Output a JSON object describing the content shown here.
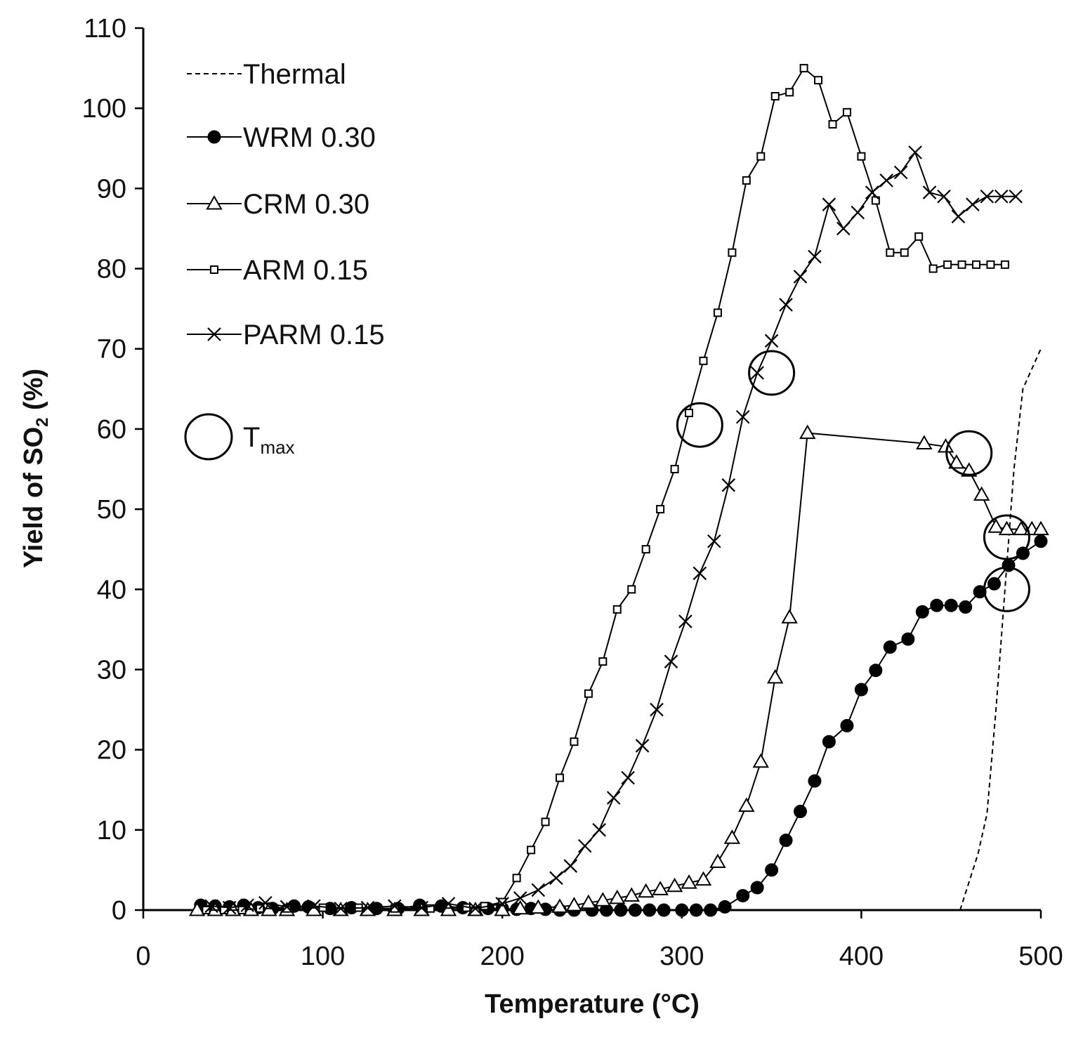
{
  "chart_data": {
    "type": "line",
    "title": "",
    "xlabel": "Temperature (°C)",
    "ylabel_main": "Yield of SO",
    "ylabel_sub": "2",
    "ylabel_tail": " (%)",
    "xlim": [
      0,
      500
    ],
    "ylim": [
      0,
      110
    ],
    "x_ticks": [
      0,
      100,
      200,
      300,
      400,
      500
    ],
    "y_ticks": [
      0,
      10,
      20,
      30,
      40,
      50,
      60,
      70,
      80,
      90,
      100,
      110
    ],
    "grid": false,
    "legend_position": "top-left",
    "series": [
      {
        "name": "Thermal",
        "style": "dashed",
        "marker": "none",
        "x": [
          455,
          465,
          470,
          475,
          480,
          485,
          490,
          500
        ],
        "y": [
          0,
          7,
          12,
          25,
          40,
          55,
          65,
          70
        ]
      },
      {
        "name": "WRM 0.30",
        "style": "solid",
        "marker": "filled-circle",
        "x": [
          32,
          40,
          48,
          56,
          64,
          72,
          84,
          92,
          104,
          116,
          130,
          142,
          154,
          166,
          178,
          192,
          200,
          208,
          216,
          224,
          232,
          240,
          250,
          258,
          266,
          274,
          282,
          290,
          300,
          308,
          316,
          324,
          334,
          342,
          350,
          358,
          366,
          374,
          382,
          392,
          400,
          408,
          416,
          426,
          434,
          442,
          450,
          458,
          466,
          474,
          482,
          490,
          500
        ],
        "y": [
          0.6,
          0.5,
          0.4,
          0.6,
          0.3,
          0.2,
          0.5,
          0.4,
          0.2,
          0.3,
          0.2,
          0.2,
          0.6,
          0.5,
          0.3,
          0.2,
          0.2,
          0.1,
          0.2,
          0.1,
          0,
          0,
          0,
          0,
          0,
          0,
          0,
          0,
          0,
          0,
          0,
          0.4,
          1.8,
          2.8,
          5,
          8.7,
          12.3,
          16.1,
          21,
          23,
          27.5,
          29.9,
          32.8,
          33.8,
          37.2,
          38,
          38,
          37.8,
          39.7,
          40.7,
          43,
          44.5,
          46
        ]
      },
      {
        "name": "CRM 0.30",
        "style": "solid",
        "marker": "open-triangle",
        "x": [
          30,
          40,
          50,
          60,
          70,
          80,
          95,
          110,
          125,
          140,
          155,
          170,
          185,
          200,
          210,
          220,
          232,
          240,
          248,
          256,
          264,
          272,
          280,
          288,
          296,
          304,
          312,
          320,
          328,
          336,
          344,
          352,
          360,
          370,
          435,
          447,
          453,
          460,
          467,
          475,
          481,
          489,
          495,
          500
        ],
        "y": [
          0,
          0,
          0,
          0,
          0,
          0,
          0,
          0,
          0,
          0,
          0,
          0,
          0,
          0,
          0.2,
          0.3,
          0.4,
          0.6,
          0.9,
          1.2,
          1.5,
          1.8,
          2.3,
          2.6,
          3,
          3.4,
          3.8,
          6,
          9,
          13,
          18.5,
          29,
          36.5,
          59.5,
          58.2,
          57.8,
          55.8,
          54.8,
          51.8,
          47.8,
          47.5,
          47.5,
          47.5,
          47.5
        ]
      },
      {
        "name": "ARM 0.15",
        "style": "solid",
        "marker": "open-square",
        "x": [
          35,
          45,
          55,
          65,
          80,
          100,
          120,
          140,
          160,
          180,
          190,
          200,
          208,
          216,
          224,
          232,
          240,
          248,
          256,
          264,
          272,
          280,
          288,
          296,
          304,
          312,
          320,
          328,
          336,
          344,
          352,
          360,
          368,
          376,
          384,
          392,
          400,
          408,
          416,
          424,
          432,
          440,
          448,
          456,
          464,
          472,
          480
        ],
        "y": [
          0,
          0,
          0,
          0.2,
          0.2,
          0.3,
          0.3,
          0.2,
          0.2,
          0.3,
          0.5,
          1,
          4,
          7.5,
          11,
          16.5,
          21,
          27,
          31,
          37.5,
          40,
          45,
          50,
          55,
          62,
          68.5,
          74.5,
          82,
          91,
          94,
          101.5,
          102,
          105,
          103.5,
          98,
          99.5,
          94,
          88.5,
          82,
          82,
          84,
          80,
          80.5,
          80.5,
          80.5,
          80.5,
          80.5
        ]
      },
      {
        "name": "PARM 0.15",
        "style": "solid",
        "marker": "x",
        "x": [
          38,
          48,
          58,
          68,
          80,
          95,
          110,
          125,
          140,
          155,
          170,
          185,
          200,
          210,
          220,
          230,
          238,
          246,
          254,
          262,
          270,
          278,
          286,
          294,
          302,
          310,
          318,
          326,
          334,
          342,
          350,
          358,
          366,
          374,
          382,
          390,
          398,
          406,
          414,
          422,
          430,
          438,
          446,
          454,
          462,
          470,
          478,
          486
        ],
        "y": [
          0.5,
          0.3,
          0.6,
          0.9,
          0.4,
          0.5,
          0.2,
          0.3,
          0.5,
          0.3,
          0.8,
          0.2,
          0.8,
          1.5,
          2.5,
          4,
          5.5,
          8,
          10,
          14,
          16.5,
          20.5,
          25,
          31,
          36,
          42,
          46,
          53,
          61.5,
          67,
          71,
          75.5,
          79,
          81.5,
          88,
          85,
          87,
          89.5,
          91,
          92,
          94.5,
          89.5,
          89,
          86.5,
          88,
          89,
          89,
          89
        ]
      }
    ],
    "annotations": {
      "tmax_label": "T",
      "tmax_sub": "max",
      "tmax_points": [
        {
          "x": 310,
          "y": 60.5
        },
        {
          "x": 350,
          "y": 67
        },
        {
          "x": 460,
          "y": 57
        },
        {
          "x": 481,
          "y": 46.5
        },
        {
          "x": 481,
          "y": 40
        }
      ]
    }
  }
}
